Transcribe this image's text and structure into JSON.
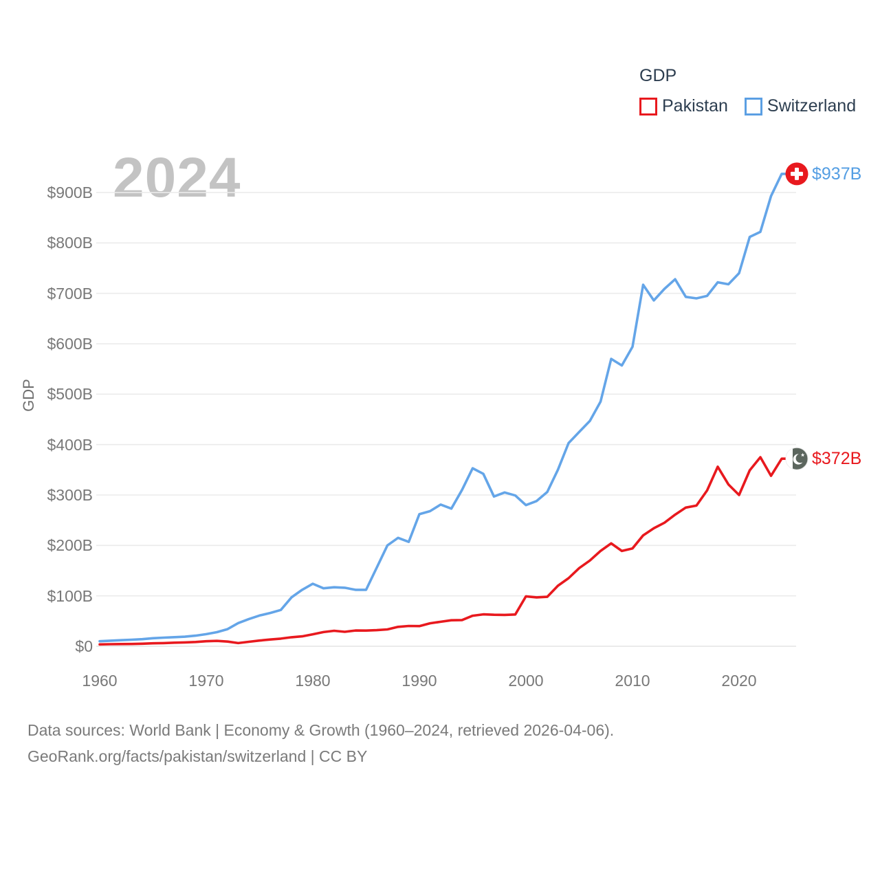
{
  "legend": {
    "title": "GDP",
    "items": [
      {
        "label": "Pakistan",
        "color": "#e8191e"
      },
      {
        "label": "Switzerland",
        "color": "#5b9fe3"
      }
    ]
  },
  "watermark": "2024",
  "y_axis": {
    "title": "GDP",
    "ticks": [
      "$0",
      "$100B",
      "$200B",
      "$300B",
      "$400B",
      "$500B",
      "$600B",
      "$700B",
      "$800B",
      "$900B"
    ]
  },
  "x_axis": {
    "ticks": [
      "1960",
      "1970",
      "1980",
      "1990",
      "2000",
      "2010",
      "2020"
    ]
  },
  "end_labels": [
    {
      "series": "Switzerland",
      "text": "$937B",
      "flag": "switzerland-flag",
      "color": "#549ee3"
    },
    {
      "series": "Pakistan",
      "text": "$372B",
      "flag": "pakistan-flag",
      "color": "#e8191e"
    }
  ],
  "footer": {
    "line1": "Data sources: World Bank | Economy & Growth (1960–2024, retrieved 2026-04-06).",
    "line2": "GeoRank.org/facts/pakistan/switzerland | CC BY"
  },
  "chart_data": {
    "type": "line",
    "title": "GDP",
    "ylabel": "GDP",
    "ylim": [
      0,
      960
    ],
    "grid": true,
    "legend_position": "top-right",
    "x_tick_years": [
      1960,
      1970,
      1980,
      1990,
      2000,
      2010,
      2020
    ],
    "x": [
      1960,
      1961,
      1962,
      1963,
      1964,
      1965,
      1966,
      1967,
      1968,
      1969,
      1970,
      1971,
      1972,
      1973,
      1974,
      1975,
      1976,
      1977,
      1978,
      1979,
      1980,
      1981,
      1982,
      1983,
      1984,
      1985,
      1986,
      1987,
      1988,
      1989,
      1990,
      1991,
      1992,
      1993,
      1994,
      1995,
      1996,
      1997,
      1998,
      1999,
      2000,
      2001,
      2002,
      2003,
      2004,
      2005,
      2006,
      2007,
      2008,
      2009,
      2010,
      2011,
      2012,
      2013,
      2014,
      2015,
      2016,
      2017,
      2018,
      2019,
      2020,
      2021,
      2022,
      2023,
      2024
    ],
    "series": [
      {
        "name": "Pakistan",
        "color": "#e8191e",
        "end_value_label": "$372B",
        "values": [
          3.7,
          4.1,
          4.3,
          4.5,
          5.1,
          5.9,
          6.3,
          7.1,
          7.7,
          8.4,
          10.0,
          10.7,
          9.3,
          6.3,
          8.8,
          11.3,
          13.3,
          15.1,
          17.8,
          19.7,
          23.7,
          28.1,
          30.7,
          28.7,
          31.2,
          31.1,
          31.9,
          33.4,
          38.5,
          40.2,
          40.0,
          45.6,
          48.6,
          51.5,
          51.9,
          60.6,
          63.3,
          62.4,
          62.2,
          63.0,
          99,
          97,
          98,
          120,
          135,
          155,
          170,
          189,
          204,
          189,
          194,
          220,
          234,
          245,
          261,
          275,
          279,
          309,
          356,
          321,
          300,
          349,
          375,
          338,
          372
        ]
      },
      {
        "name": "Switzerland",
        "color": "#64a5e8",
        "end_value_label": "$937B",
        "values": [
          10,
          11,
          12,
          13,
          14,
          16,
          17,
          18,
          19,
          21,
          24,
          28,
          34,
          46,
          54,
          61,
          66,
          72,
          97,
          112,
          124,
          115,
          117,
          116,
          112,
          112,
          156,
          200,
          215,
          207,
          262,
          268,
          281,
          273,
          310,
          353,
          342,
          297,
          305,
          299,
          280,
          288,
          306,
          350,
          403,
          425,
          447,
          485,
          570,
          557,
          594,
          717,
          686,
          709,
          728,
          693,
          690,
          695,
          722,
          718,
          740,
          812,
          822,
          893,
          937
        ]
      }
    ]
  }
}
